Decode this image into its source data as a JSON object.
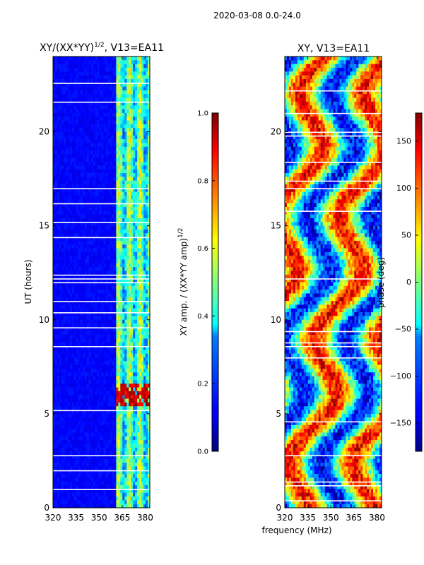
{
  "figure_title": "2020-03-08 0.0-24.0",
  "shared_xlabel": "frequency (MHz)",
  "chart_data": [
    {
      "type": "heatmap",
      "title_main": "XY/(XX*YY)",
      "title_exp": "1/2",
      "title_tail": ", V13=EA11",
      "xlim": [
        320,
        383
      ],
      "ylim": [
        0,
        24
      ],
      "xticks": [
        320,
        335,
        350,
        365,
        380
      ],
      "yticks": [
        0,
        5,
        10,
        15,
        20
      ],
      "ylabel": "UT (hours)",
      "colormap": "jet",
      "colorbar": {
        "range": [
          0.0,
          1.0
        ],
        "ticks": [
          "0.0",
          "0.2",
          "0.4",
          "0.6",
          "0.8",
          "1.0"
        ],
        "label_main": "XY amp. / (XX*YY amp)",
        "label_exp": "1/2"
      }
    },
    {
      "type": "heatmap",
      "title_main": "XY, V13=EA11",
      "xlim": [
        320,
        383
      ],
      "ylim": [
        0,
        24
      ],
      "xticks": [
        320,
        335,
        350,
        365,
        380
      ],
      "yticks": [
        0,
        5,
        10,
        15,
        20
      ],
      "colormap": "jet",
      "colorbar": {
        "range": [
          -180,
          180
        ],
        "ticks": [
          "−150",
          "−100",
          "−50",
          "0",
          "50",
          "100",
          "150"
        ],
        "tick_values": [
          -150,
          -100,
          -50,
          0,
          50,
          100,
          150
        ],
        "label": "phase (deg)"
      }
    }
  ]
}
